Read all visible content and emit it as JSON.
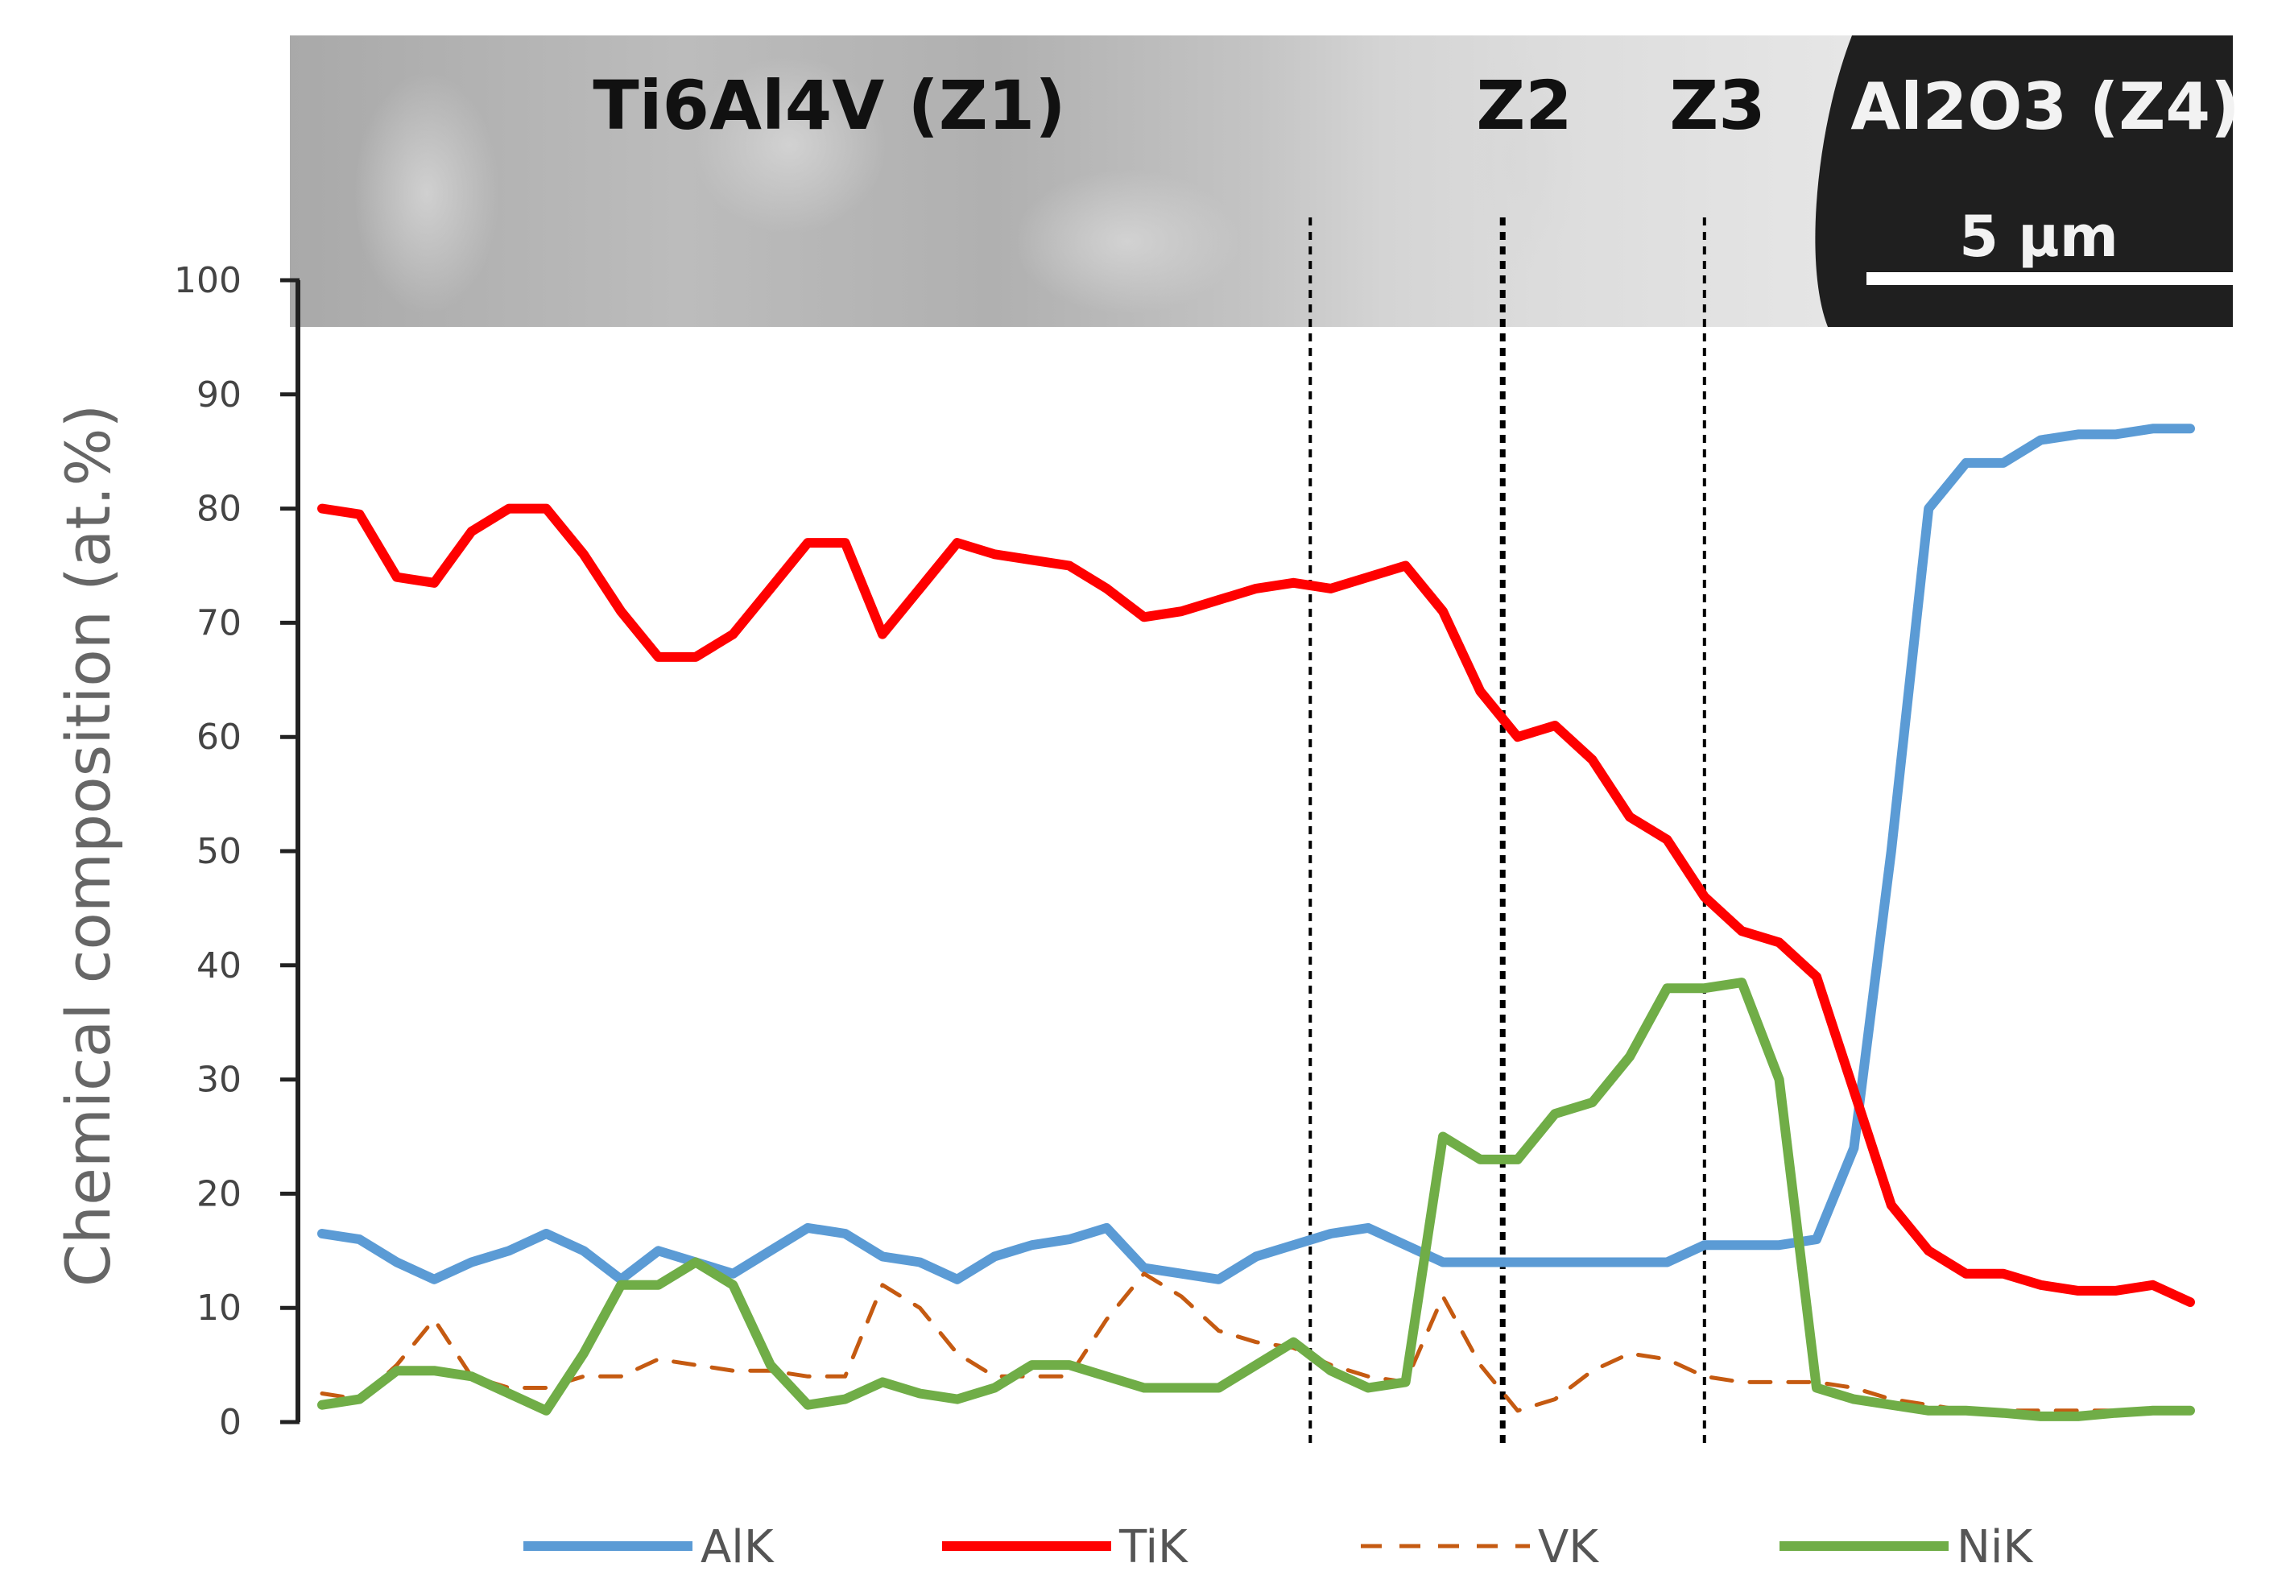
{
  "chart_data": {
    "type": "line",
    "title": "",
    "xlabel": "",
    "ylabel": "Chemical composition (at.%)",
    "ylim": [
      0,
      100
    ],
    "yticks": [
      "0",
      "10",
      "20",
      "30",
      "40",
      "50",
      "60",
      "70",
      "80",
      "90",
      "100"
    ],
    "xlim": [
      0,
      100
    ],
    "grid": false,
    "legend_position": "bottom",
    "sem_image": {
      "zone_labels": [
        "Ti6Al4V (Z1)",
        "Z2",
        "Z3",
        "Al2O3 (Z4)"
      ],
      "scale_bar_label": "5 µm",
      "boundaries": [
        52.9,
        63.2,
        74.0
      ]
    },
    "series": [
      {
        "name": "AlK",
        "color": "#5b9bd5",
        "dash": "solid",
        "x": [
          0,
          2,
          4,
          6,
          8,
          10,
          12,
          14,
          16,
          18,
          20,
          22,
          24,
          26,
          28,
          30,
          32,
          34,
          36,
          38,
          40,
          42,
          44,
          46,
          48,
          50,
          52,
          54,
          56,
          58,
          60,
          62,
          64,
          66,
          68,
          70,
          72,
          74,
          76,
          78,
          80,
          82,
          84,
          86,
          88,
          90,
          92,
          94,
          96,
          98,
          100
        ],
        "y": [
          16.5,
          16,
          14,
          12.5,
          14,
          15,
          16.5,
          15,
          12.5,
          15,
          14,
          13,
          15,
          17,
          16.5,
          14.5,
          14,
          12.5,
          14.5,
          15.5,
          16,
          17,
          13.5,
          13,
          12.5,
          14.5,
          15.5,
          16.5,
          17,
          15.5,
          14,
          14,
          14,
          14,
          14,
          14,
          14,
          15.5,
          15.5,
          15.5,
          16,
          24,
          50,
          80,
          84,
          84,
          86,
          86.5,
          86.5,
          87,
          87
        ]
      },
      {
        "name": "TiK",
        "color": "#ff0000",
        "dash": "solid",
        "x": [
          0,
          2,
          4,
          6,
          8,
          10,
          12,
          14,
          16,
          18,
          20,
          22,
          24,
          26,
          28,
          30,
          32,
          34,
          36,
          38,
          40,
          42,
          44,
          46,
          48,
          50,
          52,
          54,
          56,
          58,
          60,
          62,
          64,
          66,
          68,
          70,
          72,
          74,
          76,
          78,
          80,
          82,
          84,
          86,
          88,
          90,
          92,
          94,
          96,
          98,
          100
        ],
        "y": [
          80,
          79.5,
          74,
          73.5,
          78,
          80,
          80,
          76,
          71,
          67,
          67,
          69,
          73,
          77,
          77,
          69,
          73,
          77,
          76,
          75.5,
          75,
          73,
          70.5,
          71,
          72,
          73,
          73.5,
          73,
          74,
          75,
          71,
          64,
          60,
          61,
          58,
          53,
          51,
          46,
          43,
          42,
          39,
          29,
          19,
          15,
          13,
          13,
          12,
          11.5,
          11.5,
          12,
          10.5
        ]
      },
      {
        "name": "VK",
        "color": "#c55a11",
        "dash": "dashed",
        "x": [
          0,
          2,
          4,
          6,
          8,
          10,
          12,
          14,
          16,
          18,
          20,
          22,
          24,
          26,
          28,
          30,
          32,
          34,
          36,
          38,
          40,
          42,
          44,
          46,
          48,
          50,
          52,
          54,
          56,
          58,
          60,
          62,
          64,
          66,
          68,
          70,
          72,
          74,
          76,
          78,
          80,
          82,
          84,
          86,
          88,
          90,
          92,
          94,
          96,
          98,
          100
        ],
        "y": [
          2.5,
          2,
          5,
          9,
          4,
          3,
          3,
          4,
          4,
          5.5,
          5,
          4.5,
          4.5,
          4,
          4,
          12,
          10,
          6,
          4,
          4,
          4,
          9,
          13,
          11,
          8,
          7,
          6.5,
          5,
          4,
          3.5,
          11,
          5,
          1,
          2,
          4.5,
          6,
          5.5,
          4,
          3.5,
          3.5,
          3.5,
          3,
          2,
          1.5,
          1,
          1,
          1,
          1,
          1,
          1,
          1
        ]
      },
      {
        "name": "NiK",
        "color": "#70ad47",
        "dash": "solid",
        "x": [
          0,
          2,
          4,
          6,
          8,
          10,
          12,
          14,
          16,
          18,
          20,
          22,
          24,
          26,
          28,
          30,
          32,
          34,
          36,
          38,
          40,
          42,
          44,
          46,
          48,
          50,
          52,
          54,
          56,
          58,
          60,
          62,
          64,
          66,
          68,
          70,
          72,
          74,
          76,
          78,
          80,
          82,
          84,
          86,
          88,
          90,
          92,
          94,
          96,
          98,
          100
        ],
        "y": [
          1.5,
          2,
          4.5,
          4.5,
          4,
          2.5,
          1,
          6,
          12,
          12,
          14,
          12,
          5,
          1.5,
          2,
          3.5,
          2.5,
          2,
          3,
          5,
          5,
          4,
          3,
          3,
          3,
          5,
          7,
          4.5,
          3,
          3.5,
          25,
          23,
          23,
          27,
          28,
          32,
          38,
          38,
          38.5,
          30,
          3,
          2,
          1.5,
          1,
          1,
          0.8,
          0.5,
          0.5,
          0.8,
          1,
          1
        ]
      }
    ]
  }
}
